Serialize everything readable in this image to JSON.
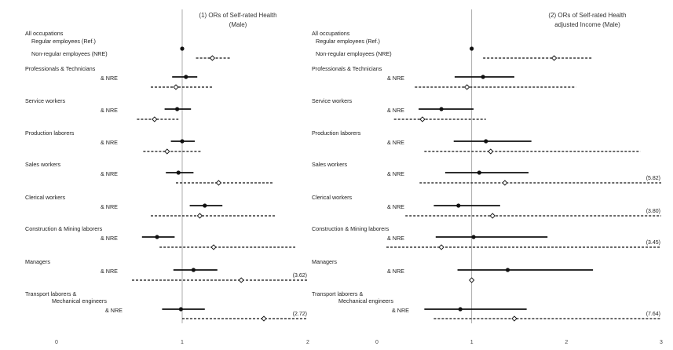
{
  "chart_data": [
    {
      "type": "forest",
      "title_line1": "(1) ORs of Self-rated Health",
      "title_line2": "(Male)",
      "x_ticks": [
        "0",
        "1",
        "2"
      ],
      "xlim": [
        0,
        2
      ],
      "groups": [
        {
          "label_a": "All occupations",
          "label_b": "Regular employees (Ref.)",
          "label_c": "Non-regular employees (NRE)",
          "solid": {
            "or": 1.0,
            "lo": 1.0,
            "hi": 1.0
          },
          "dashed": {
            "or": 1.24,
            "lo": 1.11,
            "hi": 1.38
          }
        },
        {
          "label_a": "Professionals & Technicians",
          "label_b": "& NRE",
          "solid": {
            "or": 1.03,
            "lo": 0.92,
            "hi": 1.12
          },
          "dashed": {
            "or": 0.95,
            "lo": 0.75,
            "hi": 1.25
          }
        },
        {
          "label_a": "Service workers",
          "label_b": "& NRE",
          "solid": {
            "or": 0.96,
            "lo": 0.86,
            "hi": 1.07
          },
          "dashed": {
            "or": 0.78,
            "lo": 0.64,
            "hi": 0.97
          }
        },
        {
          "label_a": "Production laborers",
          "label_b": "& NRE",
          "solid": {
            "or": 1.0,
            "lo": 0.91,
            "hi": 1.1
          },
          "dashed": {
            "or": 0.88,
            "lo": 0.69,
            "hi": 1.15
          }
        },
        {
          "label_a": "Sales workers",
          "label_b": "& NRE",
          "solid": {
            "or": 0.97,
            "lo": 0.87,
            "hi": 1.09
          },
          "dashed": {
            "or": 1.29,
            "lo": 0.95,
            "hi": 1.73
          }
        },
        {
          "label_a": "Clerical workers",
          "label_b": "& NRE",
          "solid": {
            "or": 1.18,
            "lo": 1.06,
            "hi": 1.32
          },
          "dashed": {
            "or": 1.14,
            "lo": 0.75,
            "hi": 1.74
          }
        },
        {
          "label_a": "Construction & Mining laborers",
          "label_b": "& NRE",
          "solid": {
            "or": 0.8,
            "lo": 0.68,
            "hi": 0.94
          },
          "dashed": {
            "or": 1.25,
            "lo": 0.82,
            "hi": 1.9
          }
        },
        {
          "label_a": "Managers",
          "label_b": "& NRE",
          "solid": {
            "or": 1.09,
            "lo": 0.93,
            "hi": 1.28
          },
          "dashed": {
            "or": 1.47,
            "lo": 0.6,
            "hi": 3.62
          },
          "annot": "(3.62)"
        },
        {
          "label_a": "Transport laborers &",
          "label_b": "Mechanical engineers",
          "label_c": "& NRE",
          "solid": {
            "or": 0.99,
            "lo": 0.84,
            "hi": 1.18
          },
          "dashed": {
            "or": 1.65,
            "lo": 1.0,
            "hi": 2.72
          },
          "annot": "(2.72)"
        }
      ]
    },
    {
      "type": "forest",
      "title_line1": "(2) ORs of Self-rated Health",
      "title_line2": "adjusted Income (Male)",
      "x_ticks": [
        "0",
        "1",
        "2",
        "3"
      ],
      "xlim": [
        0,
        3
      ],
      "groups": [
        {
          "label_a": "All occupations",
          "label_b": "Regular employees (Ref.)",
          "label_c": "Non-regular employees (NRE)",
          "solid": {
            "or": 1.0,
            "lo": 1.0,
            "hi": 1.0
          },
          "dashed": {
            "or": 1.87,
            "lo": 1.12,
            "hi": 2.28
          }
        },
        {
          "label_a": "Professionals & Technicians",
          "label_b": "& NRE",
          "solid": {
            "or": 1.12,
            "lo": 0.82,
            "hi": 1.45
          },
          "dashed": {
            "or": 0.95,
            "lo": 0.4,
            "hi": 2.1
          }
        },
        {
          "label_a": "Service workers",
          "label_b": "& NRE",
          "solid": {
            "or": 0.68,
            "lo": 0.44,
            "hi": 1.02
          },
          "dashed": {
            "or": 0.48,
            "lo": 0.18,
            "hi": 1.15
          }
        },
        {
          "label_a": "Production laborers",
          "label_b": "& NRE",
          "solid": {
            "or": 1.15,
            "lo": 0.81,
            "hi": 1.63
          },
          "dashed": {
            "or": 1.2,
            "lo": 0.5,
            "hi": 2.78
          }
        },
        {
          "label_a": "Sales workers",
          "label_b": "& NRE",
          "solid": {
            "or": 1.08,
            "lo": 0.72,
            "hi": 1.6
          },
          "dashed": {
            "or": 1.35,
            "lo": 0.45,
            "hi": 5.82
          },
          "annot": "(5.82)"
        },
        {
          "label_a": "Clerical workers",
          "label_b": "& NRE",
          "solid": {
            "or": 0.86,
            "lo": 0.6,
            "hi": 1.3
          },
          "dashed": {
            "or": 1.22,
            "lo": 0.3,
            "hi": 3.8
          },
          "annot": "(3.80)"
        },
        {
          "label_a": "Construction & Mining laborers",
          "label_b": "& NRE",
          "solid": {
            "or": 1.02,
            "lo": 0.62,
            "hi": 1.8
          },
          "dashed": {
            "or": 0.68,
            "lo": 0.1,
            "hi": 3.45
          },
          "annot": "(3.45)"
        },
        {
          "label_a": "Managers",
          "label_b": "& NRE",
          "solid": {
            "or": 1.38,
            "lo": 0.85,
            "hi": 2.28
          },
          "dashed": {
            "or": 1.0,
            "lo": 1.0,
            "hi": 1.0
          }
        },
        {
          "label_a": "Transport laborers &",
          "label_b": "Mechanical engineers",
          "label_c": "& NRE",
          "solid": {
            "or": 0.88,
            "lo": 0.5,
            "hi": 1.58
          },
          "dashed": {
            "or": 1.45,
            "lo": 0.6,
            "hi": 7.64
          },
          "annot": "(7.64)"
        }
      ]
    }
  ]
}
